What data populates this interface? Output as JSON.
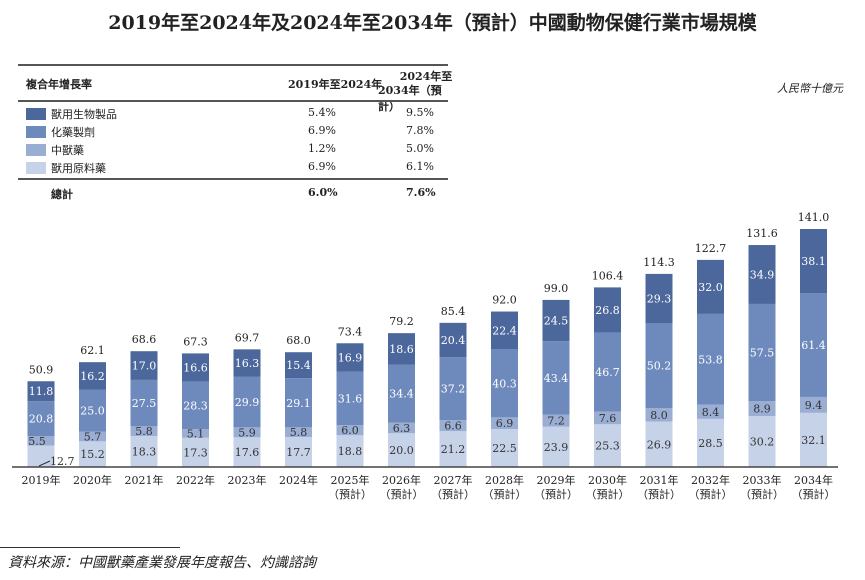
{
  "title": "2019年至2024年及2024年至2034年（預計）中國動物保健行業市場規模",
  "unit": "人民幣十億元",
  "cagr_table": {
    "header": "複合年增長率",
    "col1": "2019年至2024年",
    "col2_line1": "2024年至",
    "col2_line2": "2034年（預計）",
    "rows": [
      {
        "label": "獸用生物製品",
        "v1": "5.4%",
        "v2": "9.5%",
        "color": "#4b679b"
      },
      {
        "label": "化藥製劑",
        "v1": "6.9%",
        "v2": "7.8%",
        "color": "#6e8abd"
      },
      {
        "label": "中獸藥",
        "v1": "1.2%",
        "v2": "5.0%",
        "color": "#9aadd3"
      },
      {
        "label": "獸用原料藥",
        "v1": "6.9%",
        "v2": "6.1%",
        "color": "#c6d2e8"
      }
    ],
    "total": {
      "label": "總計",
      "v1": "6.0%",
      "v2": "7.6%"
    }
  },
  "source": "資料來源：中國獸藥產業發展年度報告、灼識諮詢",
  "chart_data": {
    "type": "bar",
    "stacked": true,
    "categories": [
      "2019年",
      "2020年",
      "2021年",
      "2022年",
      "2023年",
      "2024年",
      "2025年",
      "2026年",
      "2027年",
      "2028年",
      "2029年",
      "2030年",
      "2031年",
      "2032年",
      "2033年",
      "2034年"
    ],
    "category_sublabels": [
      "",
      "",
      "",
      "",
      "",
      "",
      "（預計）",
      "（預計）",
      "（預計）",
      "（預計）",
      "（預計）",
      "（預計）",
      "（預計）",
      "（預計）",
      "（預計）",
      "（預計）"
    ],
    "series": [
      {
        "name": "獸用原料藥",
        "color": "#c6d2e8",
        "values": [
          12.7,
          15.2,
          18.3,
          17.3,
          17.6,
          17.7,
          18.8,
          20.0,
          21.2,
          22.5,
          23.9,
          25.3,
          26.9,
          28.5,
          30.2,
          32.1
        ]
      },
      {
        "name": "中獸藥",
        "color": "#9aadd3",
        "values": [
          5.5,
          5.7,
          5.8,
          5.1,
          5.9,
          5.8,
          6.0,
          6.3,
          6.6,
          6.9,
          7.2,
          7.6,
          8.0,
          8.4,
          8.9,
          9.4
        ]
      },
      {
        "name": "化藥製劑",
        "color": "#6e8abd",
        "values": [
          20.8,
          25.0,
          27.5,
          28.3,
          29.9,
          29.1,
          31.6,
          34.4,
          37.2,
          40.3,
          43.4,
          46.7,
          50.2,
          53.8,
          57.5,
          61.4
        ]
      },
      {
        "name": "獸用生物製品",
        "color": "#4b679b",
        "values": [
          11.8,
          16.2,
          17.0,
          16.6,
          16.3,
          15.4,
          16.9,
          18.6,
          20.4,
          22.4,
          24.5,
          26.8,
          29.3,
          32.0,
          34.9,
          38.1
        ]
      }
    ],
    "totals": [
      "50.9",
      "62.1",
      "68.6",
      "67.3",
      "69.7",
      "68.0",
      "73.4",
      "79.2",
      "85.4",
      "92.0",
      "99.0",
      "106.4",
      "114.3",
      "122.7",
      "131.6",
      "141.0"
    ],
    "ylim": [
      0,
      141.0
    ],
    "grid": false
  }
}
